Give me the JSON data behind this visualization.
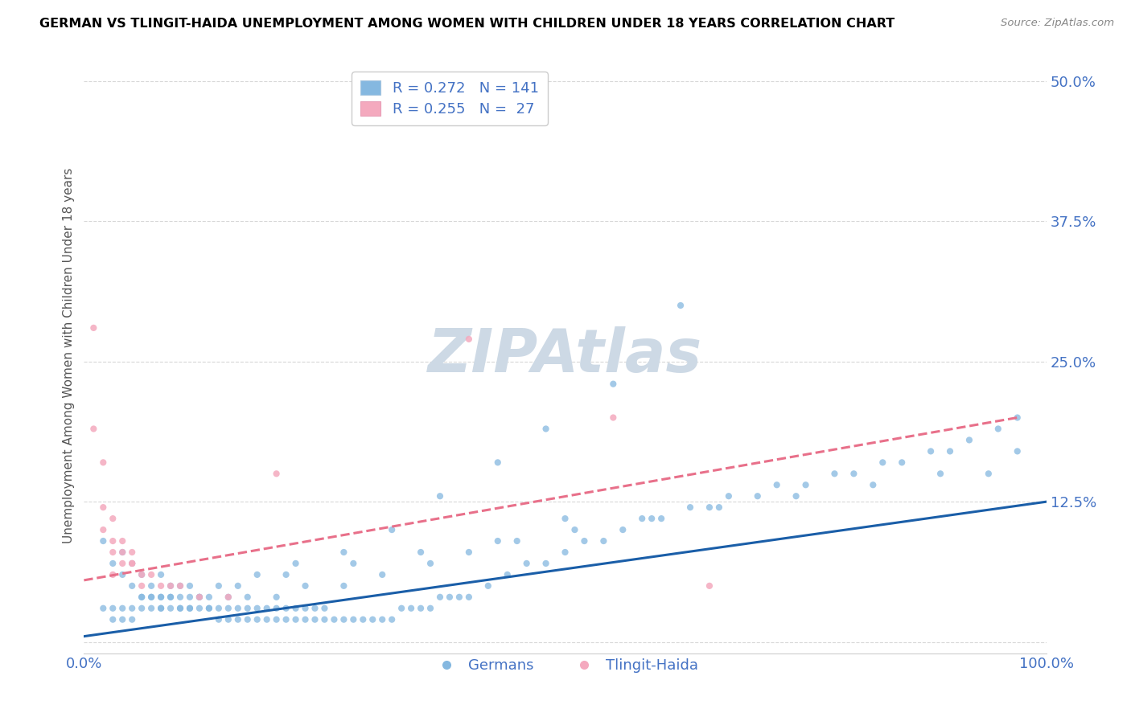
{
  "title": "GERMAN VS TLINGIT-HAIDA UNEMPLOYMENT AMONG WOMEN WITH CHILDREN UNDER 18 YEARS CORRELATION CHART",
  "source": "Source: ZipAtlas.com",
  "ylabel": "Unemployment Among Women with Children Under 18 years",
  "xlim": [
    0.0,
    1.0
  ],
  "ylim": [
    -0.01,
    0.52
  ],
  "yticks": [
    0.0,
    0.125,
    0.25,
    0.375,
    0.5
  ],
  "yticklabels": [
    "",
    "12.5%",
    "25.0%",
    "37.5%",
    "50.0%"
  ],
  "xtick_left_label": "0.0%",
  "xtick_right_label": "100.0%",
  "blue_scatter_color": "#85b8e0",
  "pink_scatter_color": "#f4a9be",
  "blue_line_color": "#1a5ea8",
  "pink_line_color": "#e8708a",
  "tick_label_color": "#4472c4",
  "grid_color": "#d8d8d8",
  "watermark_color": "#cdd9e5",
  "title_color": "#000000",
  "source_color": "#888888",
  "R_german": 0.272,
  "N_german": 141,
  "R_tlingit": 0.255,
  "N_tlingit": 27,
  "german_line_x": [
    0.0,
    1.0
  ],
  "german_line_y": [
    0.005,
    0.125
  ],
  "tlingit_line_x": [
    0.0,
    0.97
  ],
  "tlingit_line_y": [
    0.055,
    0.2
  ],
  "german_x": [
    0.02,
    0.03,
    0.04,
    0.04,
    0.05,
    0.05,
    0.06,
    0.06,
    0.07,
    0.07,
    0.08,
    0.08,
    0.08,
    0.09,
    0.09,
    0.09,
    0.1,
    0.1,
    0.1,
    0.11,
    0.11,
    0.12,
    0.12,
    0.13,
    0.13,
    0.14,
    0.14,
    0.15,
    0.15,
    0.16,
    0.16,
    0.17,
    0.17,
    0.18,
    0.18,
    0.19,
    0.19,
    0.2,
    0.2,
    0.21,
    0.21,
    0.22,
    0.22,
    0.23,
    0.23,
    0.24,
    0.24,
    0.25,
    0.25,
    0.26,
    0.27,
    0.28,
    0.29,
    0.3,
    0.31,
    0.32,
    0.33,
    0.34,
    0.35,
    0.36,
    0.37,
    0.38,
    0.39,
    0.4,
    0.42,
    0.44,
    0.46,
    0.48,
    0.5,
    0.52,
    0.54,
    0.56,
    0.58,
    0.6,
    0.63,
    0.65,
    0.67,
    0.7,
    0.72,
    0.75,
    0.78,
    0.8,
    0.83,
    0.85,
    0.88,
    0.9,
    0.92,
    0.95,
    0.97,
    0.62,
    0.55,
    0.48,
    0.43,
    0.37,
    0.32,
    0.27,
    0.22,
    0.18,
    0.14,
    0.11,
    0.08,
    0.06,
    0.04,
    0.03,
    0.02,
    0.07,
    0.09,
    0.12,
    0.16,
    0.21,
    0.28,
    0.35,
    0.43,
    0.51,
    0.59,
    0.66,
    0.74,
    0.82,
    0.89,
    0.94,
    0.97,
    0.5,
    0.45,
    0.4,
    0.36,
    0.31,
    0.27,
    0.23,
    0.2,
    0.17,
    0.15,
    0.13,
    0.11,
    0.1,
    0.08,
    0.07,
    0.06,
    0.05,
    0.05,
    0.04,
    0.03
  ],
  "german_y": [
    0.09,
    0.07,
    0.06,
    0.08,
    0.05,
    0.07,
    0.04,
    0.06,
    0.04,
    0.05,
    0.03,
    0.04,
    0.06,
    0.03,
    0.04,
    0.05,
    0.03,
    0.04,
    0.05,
    0.03,
    0.04,
    0.03,
    0.04,
    0.03,
    0.04,
    0.02,
    0.03,
    0.02,
    0.03,
    0.02,
    0.03,
    0.02,
    0.03,
    0.02,
    0.03,
    0.02,
    0.03,
    0.02,
    0.03,
    0.02,
    0.03,
    0.02,
    0.03,
    0.02,
    0.03,
    0.02,
    0.03,
    0.02,
    0.03,
    0.02,
    0.02,
    0.02,
    0.02,
    0.02,
    0.02,
    0.02,
    0.03,
    0.03,
    0.03,
    0.03,
    0.04,
    0.04,
    0.04,
    0.04,
    0.05,
    0.06,
    0.07,
    0.07,
    0.08,
    0.09,
    0.09,
    0.1,
    0.11,
    0.11,
    0.12,
    0.12,
    0.13,
    0.13,
    0.14,
    0.14,
    0.15,
    0.15,
    0.16,
    0.16,
    0.17,
    0.17,
    0.18,
    0.19,
    0.2,
    0.3,
    0.23,
    0.19,
    0.16,
    0.13,
    0.1,
    0.08,
    0.07,
    0.06,
    0.05,
    0.05,
    0.04,
    0.04,
    0.03,
    0.03,
    0.03,
    0.04,
    0.04,
    0.04,
    0.05,
    0.06,
    0.07,
    0.08,
    0.09,
    0.1,
    0.11,
    0.12,
    0.13,
    0.14,
    0.15,
    0.15,
    0.17,
    0.11,
    0.09,
    0.08,
    0.07,
    0.06,
    0.05,
    0.05,
    0.04,
    0.04,
    0.04,
    0.03,
    0.03,
    0.03,
    0.03,
    0.03,
    0.03,
    0.03,
    0.02,
    0.02,
    0.02
  ],
  "tlingit_x": [
    0.01,
    0.01,
    0.02,
    0.02,
    0.03,
    0.03,
    0.04,
    0.04,
    0.05,
    0.05,
    0.06,
    0.06,
    0.07,
    0.08,
    0.09,
    0.1,
    0.12,
    0.15,
    0.2,
    0.4,
    0.55,
    0.65,
    0.02,
    0.03,
    0.03,
    0.04,
    0.05
  ],
  "tlingit_y": [
    0.28,
    0.19,
    0.16,
    0.12,
    0.11,
    0.09,
    0.08,
    0.07,
    0.08,
    0.07,
    0.06,
    0.05,
    0.06,
    0.05,
    0.05,
    0.05,
    0.04,
    0.04,
    0.15,
    0.27,
    0.2,
    0.05,
    0.1,
    0.08,
    0.06,
    0.09,
    0.07
  ]
}
